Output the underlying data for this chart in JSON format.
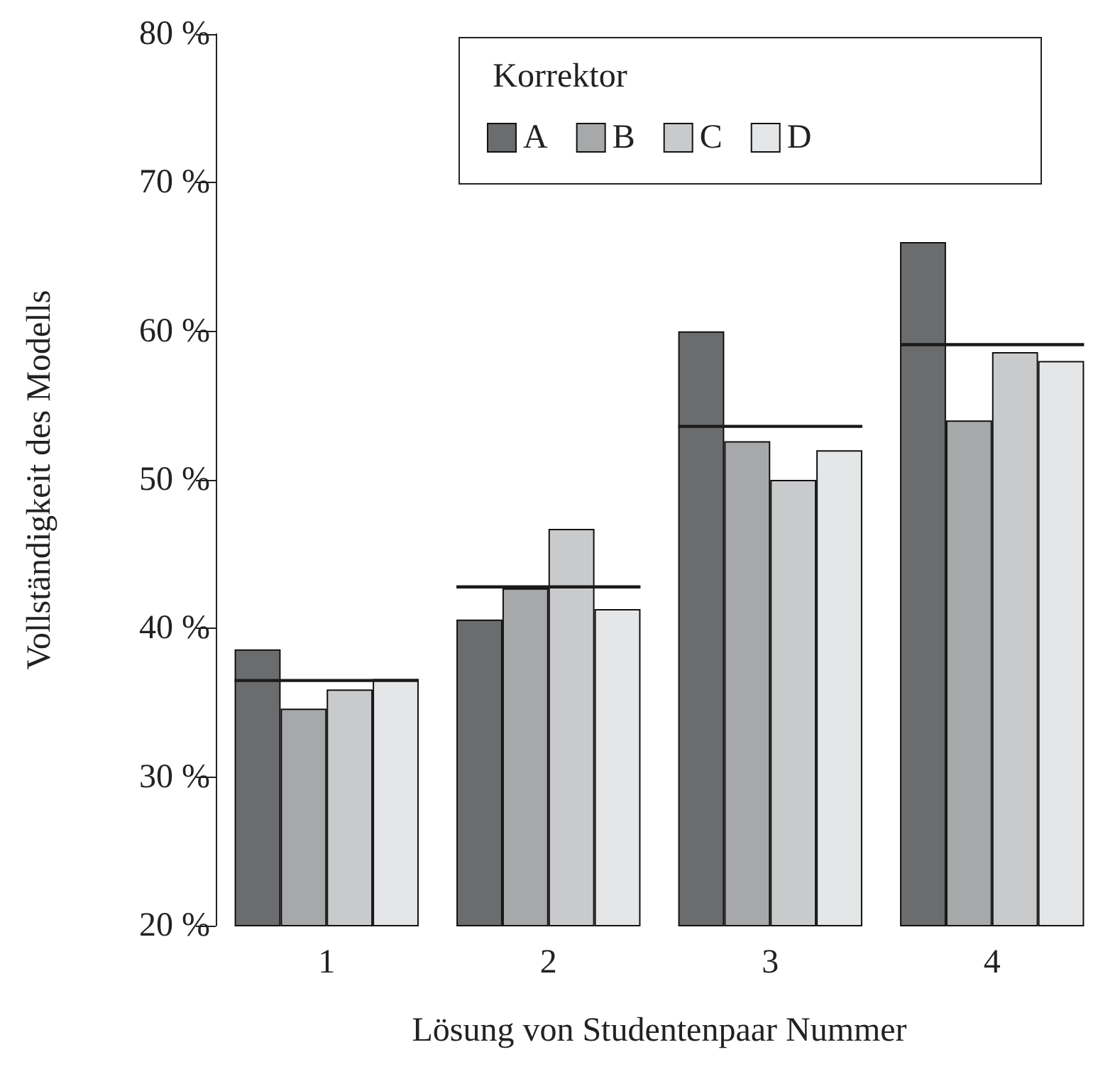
{
  "chart_data": {
    "type": "bar",
    "xlabel": "Lösung von Studentenpaar Nummer",
    "ylabel": "Vollständigkeit des Modells",
    "legend_title": "Korrektor",
    "legend": "top",
    "grid": false,
    "categories": [
      "1",
      "2",
      "3",
      "4"
    ],
    "ylim": [
      20,
      80
    ],
    "yticks": [
      {
        "value": 20,
        "label": "20 %"
      },
      {
        "value": 30,
        "label": "30 %"
      },
      {
        "value": 40,
        "label": "40 %"
      },
      {
        "value": 50,
        "label": "50 %"
      },
      {
        "value": 60,
        "label": "60 %"
      },
      {
        "value": 70,
        "label": "70 %"
      },
      {
        "value": 80,
        "label": "80 %"
      }
    ],
    "series": [
      {
        "name": "A",
        "color": "#6b6c6e",
        "values": [
          38.6,
          40.6,
          60.0,
          66.0
        ]
      },
      {
        "name": "B",
        "color": "#a7a8aa",
        "values": [
          34.6,
          42.7,
          52.6,
          54.0
        ]
      },
      {
        "name": "C",
        "color": "#c9cacc",
        "values": [
          35.9,
          46.7,
          50.0,
          58.6
        ]
      },
      {
        "name": "D",
        "color": "#e5e6e7",
        "values": [
          36.6,
          41.3,
          52.0,
          58.0
        ]
      }
    ],
    "ref_lines": [
      {
        "axis": "y",
        "value": 36.5,
        "color": "#1a1a1a"
      },
      {
        "axis": "y",
        "value": 42.8,
        "color": "#1a1a1a"
      },
      {
        "axis": "y",
        "value": 53.6,
        "color": "#1a1a1a"
      },
      {
        "axis": "y",
        "value": 59.1,
        "color": "#1a1a1a"
      }
    ]
  }
}
